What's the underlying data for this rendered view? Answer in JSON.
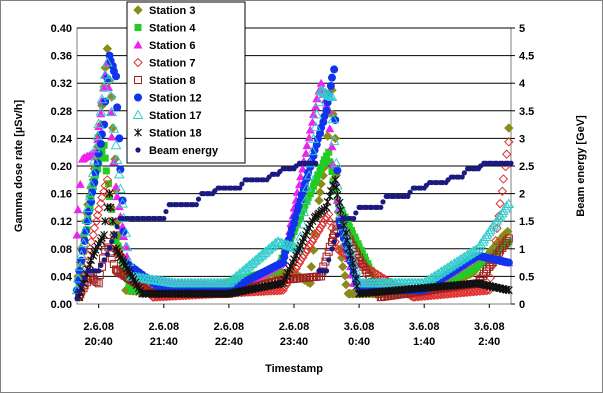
{
  "chart_data": {
    "type": "scatter",
    "xlabel": "Timestamp",
    "ylabel_left": "Gamma dose rate [µSv/h]",
    "ylabel_right": "Beam energy [GeV]",
    "y_left_range": [
      0,
      0.4
    ],
    "y_left_ticks": [
      "0.00",
      "0.04",
      "0.08",
      "0.12",
      "0.16",
      "0.20",
      "0.24",
      "0.28",
      "0.32",
      "0.36",
      "0.40"
    ],
    "y_right_range": [
      0,
      5
    ],
    "y_right_ticks": [
      "0",
      "0.5",
      "1",
      "1.5",
      "2",
      "2.5",
      "3",
      "3.5",
      "4",
      "4.5",
      "5"
    ],
    "x_range": [
      "2008-06-02T20:20",
      "2008-06-03T03:00"
    ],
    "x_ticks": [
      {
        "time": "2008-06-02T20:40",
        "line1": "2.6.08",
        "line2": "20:40"
      },
      {
        "time": "2008-06-02T21:40",
        "line1": "2.6.08",
        "line2": "21:40"
      },
      {
        "time": "2008-06-02T22:40",
        "line1": "2.6.08",
        "line2": "22:40"
      },
      {
        "time": "2008-06-02T23:40",
        "line1": "2.6.08",
        "line2": "23:40"
      },
      {
        "time": "2008-06-03T00:40",
        "line1": "3.6.08",
        "line2": "0:40"
      },
      {
        "time": "2008-06-03T01:40",
        "line1": "3.6.08",
        "line2": "1:40"
      },
      {
        "time": "2008-06-03T02:40",
        "line1": "3.6.08",
        "line2": "2:40"
      }
    ],
    "grid": true,
    "legend_position": "top-left, inside plot",
    "series": [
      {
        "name": "Station 3",
        "axis": "left",
        "marker": "diamond",
        "color": "#8b8b1a",
        "points": [
          [
            "2008-06-02T20:20",
            0.02
          ],
          [
            "2008-06-02T20:28",
            0.12
          ],
          [
            "2008-06-02T20:35",
            0.18
          ],
          [
            "2008-06-02T20:42",
            0.26
          ],
          [
            "2008-06-02T20:48",
            0.37
          ],
          [
            "2008-06-02T20:52",
            0.3
          ],
          [
            "2008-06-02T20:58",
            0.12
          ],
          [
            "2008-06-02T21:05",
            0.02
          ],
          [
            "2008-06-02T21:40",
            0.015
          ],
          [
            "2008-06-02T22:40",
            0.015
          ],
          [
            "2008-06-02T23:20",
            0.045
          ],
          [
            "2008-06-02T23:40",
            0.045
          ],
          [
            "2008-06-02T23:55",
            0.03
          ],
          [
            "2008-06-03T00:03",
            0.15
          ],
          [
            "2008-06-03T00:10",
            0.21
          ],
          [
            "2008-06-03T00:15",
            0.31
          ],
          [
            "2008-06-03T00:18",
            0.24
          ],
          [
            "2008-06-03T00:23",
            0.08
          ],
          [
            "2008-06-03T00:30",
            0.015
          ],
          [
            "2008-06-03T01:40",
            0.015
          ],
          [
            "2008-06-03T02:25",
            0.045
          ],
          [
            "2008-06-03T02:57",
            0.105
          ],
          [
            "2008-06-03T02:58",
            0.255
          ]
        ]
      },
      {
        "name": "Station 4",
        "axis": "left",
        "marker": "square",
        "color": "#22cc22",
        "points": [
          [
            "2008-06-02T20:22",
            0.03
          ],
          [
            "2008-06-02T20:35",
            0.17
          ],
          [
            "2008-06-02T20:45",
            0.23
          ],
          [
            "2008-06-02T20:55",
            0.1
          ],
          [
            "2008-06-02T21:10",
            0.02
          ],
          [
            "2008-06-02T22:00",
            0.015
          ],
          [
            "2008-06-02T23:25",
            0.05
          ],
          [
            "2008-06-03T00:12",
            0.22
          ],
          [
            "2008-06-03T00:20",
            0.15
          ],
          [
            "2008-06-03T01:00",
            0.02
          ],
          [
            "2008-06-03T01:45",
            0.02
          ],
          [
            "2008-06-03T02:25",
            0.05
          ],
          [
            "2008-06-03T02:58",
            0.09
          ]
        ]
      },
      {
        "name": "Station 6",
        "axis": "left",
        "marker": "triangle",
        "color": "#ee22ee",
        "points": [
          [
            "2008-06-02T20:20",
            0.1
          ],
          [
            "2008-06-02T20:25",
            0.21
          ],
          [
            "2008-06-02T20:38",
            0.22
          ],
          [
            "2008-06-02T20:48",
            0.35
          ],
          [
            "2008-06-02T20:56",
            0.17
          ],
          [
            "2008-06-02T21:10",
            0.04
          ],
          [
            "2008-06-02T21:50",
            0.03
          ],
          [
            "2008-06-02T22:50",
            0.025
          ],
          [
            "2008-06-02T23:30",
            0.06
          ],
          [
            "2008-06-03T00:05",
            0.32
          ],
          [
            "2008-06-03T00:12",
            0.28
          ],
          [
            "2008-06-03T00:20",
            0.15
          ],
          [
            "2008-06-03T00:35",
            0.03
          ],
          [
            "2008-06-03T01:40",
            0.02
          ],
          [
            "2008-06-03T02:30",
            0.07
          ],
          [
            "2008-06-03T02:58",
            0.06
          ]
        ]
      },
      {
        "name": "Station 7",
        "axis": "left",
        "marker": "diamond-open",
        "color": "#e03030",
        "points": [
          [
            "2008-06-02T20:22",
            0.01
          ],
          [
            "2008-06-02T20:38",
            0.12
          ],
          [
            "2008-06-02T20:48",
            0.18
          ],
          [
            "2008-06-02T20:56",
            0.08
          ],
          [
            "2008-06-02T21:30",
            0.01
          ],
          [
            "2008-06-02T23:30",
            0.02
          ],
          [
            "2008-06-03T00:12",
            0.13
          ],
          [
            "2008-06-03T00:20",
            0.08
          ],
          [
            "2008-06-03T01:30",
            0.01
          ],
          [
            "2008-06-03T02:40",
            0.02
          ],
          [
            "2008-06-03T02:58",
            0.235
          ]
        ]
      },
      {
        "name": "Station 8",
        "axis": "left",
        "marker": "square-open",
        "color": "#a02020",
        "points": [
          [
            "2008-06-02T20:22",
            0.01
          ],
          [
            "2008-06-02T20:32",
            0.04
          ],
          [
            "2008-06-02T20:40",
            0.03
          ],
          [
            "2008-06-02T20:48",
            0.09
          ],
          [
            "2008-06-02T20:56",
            0.05
          ],
          [
            "2008-06-02T21:30",
            0.015
          ],
          [
            "2008-06-02T22:40",
            0.015
          ],
          [
            "2008-06-02T23:30",
            0.035
          ],
          [
            "2008-06-03T00:05",
            0.04
          ],
          [
            "2008-06-03T00:15",
            0.09
          ],
          [
            "2008-06-03T00:22",
            0.12
          ],
          [
            "2008-06-03T01:00",
            0.01
          ],
          [
            "2008-06-03T02:30",
            0.03
          ],
          [
            "2008-06-03T02:58",
            0.095
          ]
        ]
      },
      {
        "name": "Station 12",
        "axis": "left",
        "marker": "circle",
        "color": "#1133ee",
        "points": [
          [
            "2008-06-02T20:20",
            0.02
          ],
          [
            "2008-06-02T20:30",
            0.12
          ],
          [
            "2008-06-02T20:45",
            0.26
          ],
          [
            "2008-06-02T20:50",
            0.36
          ],
          [
            "2008-06-02T20:56",
            0.33
          ],
          [
            "2008-06-02T21:05",
            0.06
          ],
          [
            "2008-06-02T21:40",
            0.02
          ],
          [
            "2008-06-02T22:40",
            0.02
          ],
          [
            "2008-06-02T23:30",
            0.06
          ],
          [
            "2008-06-03T00:10",
            0.28
          ],
          [
            "2008-06-03T00:17",
            0.34
          ],
          [
            "2008-06-03T00:22",
            0.12
          ],
          [
            "2008-06-03T00:40",
            0.02
          ],
          [
            "2008-06-03T01:40",
            0.02
          ],
          [
            "2008-06-03T02:30",
            0.07
          ],
          [
            "2008-06-03T02:58",
            0.06
          ]
        ]
      },
      {
        "name": "Station 17",
        "axis": "left",
        "marker": "triangle-open",
        "color": "#33cccc",
        "points": [
          [
            "2008-06-02T20:20",
            0.02
          ],
          [
            "2008-06-02T20:35",
            0.19
          ],
          [
            "2008-06-02T20:48",
            0.35
          ],
          [
            "2008-06-02T20:56",
            0.23
          ],
          [
            "2008-06-02T21:10",
            0.04
          ],
          [
            "2008-06-02T21:50",
            0.03
          ],
          [
            "2008-06-02T22:40",
            0.03
          ],
          [
            "2008-06-02T23:25",
            0.09
          ],
          [
            "2008-06-02T23:45",
            0.08
          ],
          [
            "2008-06-03T00:05",
            0.31
          ],
          [
            "2008-06-03T00:15",
            0.3
          ],
          [
            "2008-06-03T00:22",
            0.14
          ],
          [
            "2008-06-03T00:40",
            0.03
          ],
          [
            "2008-06-03T01:40",
            0.03
          ],
          [
            "2008-06-03T02:30",
            0.08
          ],
          [
            "2008-06-03T02:58",
            0.145
          ]
        ]
      },
      {
        "name": "Station 18",
        "axis": "left",
        "marker": "star",
        "color": "#111111",
        "points": [
          [
            "2008-06-02T20:22",
            0.01
          ],
          [
            "2008-06-02T20:35",
            0.07
          ],
          [
            "2008-06-02T20:45",
            0.1
          ],
          [
            "2008-06-02T20:50",
            0.16
          ],
          [
            "2008-06-02T20:56",
            0.08
          ],
          [
            "2008-06-02T21:20",
            0.015
          ],
          [
            "2008-06-02T22:40",
            0.015
          ],
          [
            "2008-06-02T23:30",
            0.03
          ],
          [
            "2008-06-02T23:59",
            0.125
          ],
          [
            "2008-06-03T00:10",
            0.14
          ],
          [
            "2008-06-03T00:18",
            0.18
          ],
          [
            "2008-06-03T00:40",
            0.015
          ],
          [
            "2008-06-03T02:30",
            0.03
          ],
          [
            "2008-06-03T02:58",
            0.02
          ]
        ]
      },
      {
        "name": "Beam energy",
        "axis": "right",
        "marker": "dot",
        "color": "#1a1a80",
        "points": [
          [
            "2008-06-02T20:20",
            0.1
          ],
          [
            "2008-06-02T20:30",
            0.6
          ],
          [
            "2008-06-02T20:40",
            0.6
          ],
          [
            "2008-06-02T20:48",
            0.9
          ],
          [
            "2008-06-02T20:55",
            1.25
          ],
          [
            "2008-06-02T21:00",
            1.55
          ],
          [
            "2008-06-02T21:40",
            1.55
          ],
          [
            "2008-06-02T21:45",
            1.8
          ],
          [
            "2008-06-02T22:10",
            1.8
          ],
          [
            "2008-06-02T22:15",
            2.0
          ],
          [
            "2008-06-02T22:25",
            2.0
          ],
          [
            "2008-06-02T22:30",
            2.1
          ],
          [
            "2008-06-02T22:50",
            2.1
          ],
          [
            "2008-06-02T22:55",
            2.25
          ],
          [
            "2008-06-02T23:15",
            2.25
          ],
          [
            "2008-06-02T23:20",
            2.35
          ],
          [
            "2008-06-02T23:25",
            2.35
          ],
          [
            "2008-06-02T23:30",
            2.45
          ],
          [
            "2008-06-02T23:40",
            2.45
          ],
          [
            "2008-06-02T23:45",
            2.55
          ],
          [
            "2008-06-03T00:00",
            2.55
          ],
          [
            "2008-06-03T00:03",
            0.6
          ],
          [
            "2008-06-03T00:10",
            0.6
          ],
          [
            "2008-06-03T00:15",
            1.0
          ],
          [
            "2008-06-03T00:20",
            1.25
          ],
          [
            "2008-06-03T00:25",
            1.55
          ],
          [
            "2008-06-03T00:35",
            1.55
          ],
          [
            "2008-06-03T00:40",
            1.75
          ],
          [
            "2008-06-03T01:00",
            1.75
          ],
          [
            "2008-06-03T01:05",
            1.95
          ],
          [
            "2008-06-03T01:25",
            1.95
          ],
          [
            "2008-06-03T01:30",
            2.1
          ],
          [
            "2008-06-03T01:40",
            2.1
          ],
          [
            "2008-06-03T01:45",
            2.2
          ],
          [
            "2008-06-03T02:00",
            2.2
          ],
          [
            "2008-06-03T02:05",
            2.3
          ],
          [
            "2008-06-03T02:15",
            2.3
          ],
          [
            "2008-06-03T02:20",
            2.45
          ],
          [
            "2008-06-03T02:30",
            2.45
          ],
          [
            "2008-06-03T02:35",
            2.55
          ],
          [
            "2008-06-03T03:00",
            2.55
          ]
        ]
      }
    ]
  }
}
